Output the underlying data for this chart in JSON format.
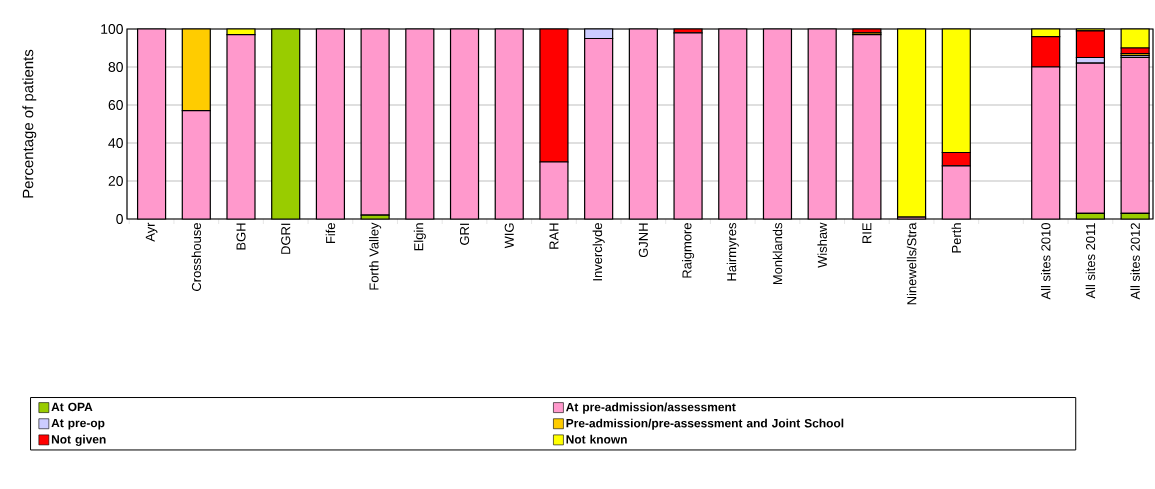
{
  "chart_data": {
    "type": "bar",
    "stacked": true,
    "ylabel": "Percentage of patients",
    "categories": [
      "Ayr",
      "Crosshouse",
      "BGH",
      "DGRI",
      "Fife",
      "Forth Valley",
      "Elgin",
      "GRI",
      "WIG",
      "RAH",
      "Inverclyde",
      "GJNH",
      "Raigmore",
      "Hairmyres",
      "Monklands",
      "Wishaw",
      "RIE",
      "Ninewells/Stra",
      "Perth",
      null,
      "All sites 2010",
      "All sites 2011",
      "All sites 2012"
    ],
    "series": [
      {
        "name": "At OPA",
        "color": "#99cc00",
        "values": [
          0,
          0,
          0,
          100,
          0,
          2,
          0,
          0,
          0,
          0,
          0,
          0,
          0,
          0,
          0,
          0,
          0,
          0,
          0,
          null,
          0,
          3,
          3
        ]
      },
      {
        "name": "At pre-admission/assessment",
        "color": "#ff99cc",
        "values": [
          100,
          57,
          97,
          0,
          100,
          98,
          100,
          100,
          100,
          30,
          95,
          100,
          98,
          100,
          100,
          100,
          97,
          1,
          28,
          null,
          80,
          79,
          82
        ]
      },
      {
        "name": "At pre-op",
        "color": "#ccccff",
        "values": [
          0,
          0,
          0,
          0,
          0,
          0,
          0,
          0,
          0,
          0,
          5,
          0,
          0,
          0,
          0,
          0,
          0,
          0,
          0,
          null,
          0,
          3,
          1
        ]
      },
      {
        "name": "Pre-admission/pre-assessment and Joint School",
        "color": "#ffcc00",
        "values": [
          0,
          43,
          0,
          0,
          0,
          0,
          0,
          0,
          0,
          0,
          0,
          0,
          0,
          0,
          0,
          0,
          1,
          0,
          0,
          null,
          0,
          0,
          1
        ]
      },
      {
        "name": "Not given",
        "color": "#ff0000",
        "values": [
          0,
          0,
          0,
          0,
          0,
          0,
          0,
          0,
          0,
          70,
          0,
          0,
          2,
          0,
          0,
          0,
          2,
          0,
          7,
          null,
          16,
          14,
          3
        ]
      },
      {
        "name": "Not known",
        "color": "#ffff00",
        "values": [
          0,
          0,
          3,
          0,
          0,
          0,
          0,
          0,
          0,
          0,
          0,
          0,
          0,
          0,
          0,
          0,
          0,
          99,
          65,
          null,
          4,
          1,
          10
        ]
      }
    ],
    "ylim": [
      0,
      100
    ],
    "yticks": [
      0,
      20,
      40,
      60,
      80,
      100
    ],
    "grid": "y",
    "legend": "bottom"
  }
}
